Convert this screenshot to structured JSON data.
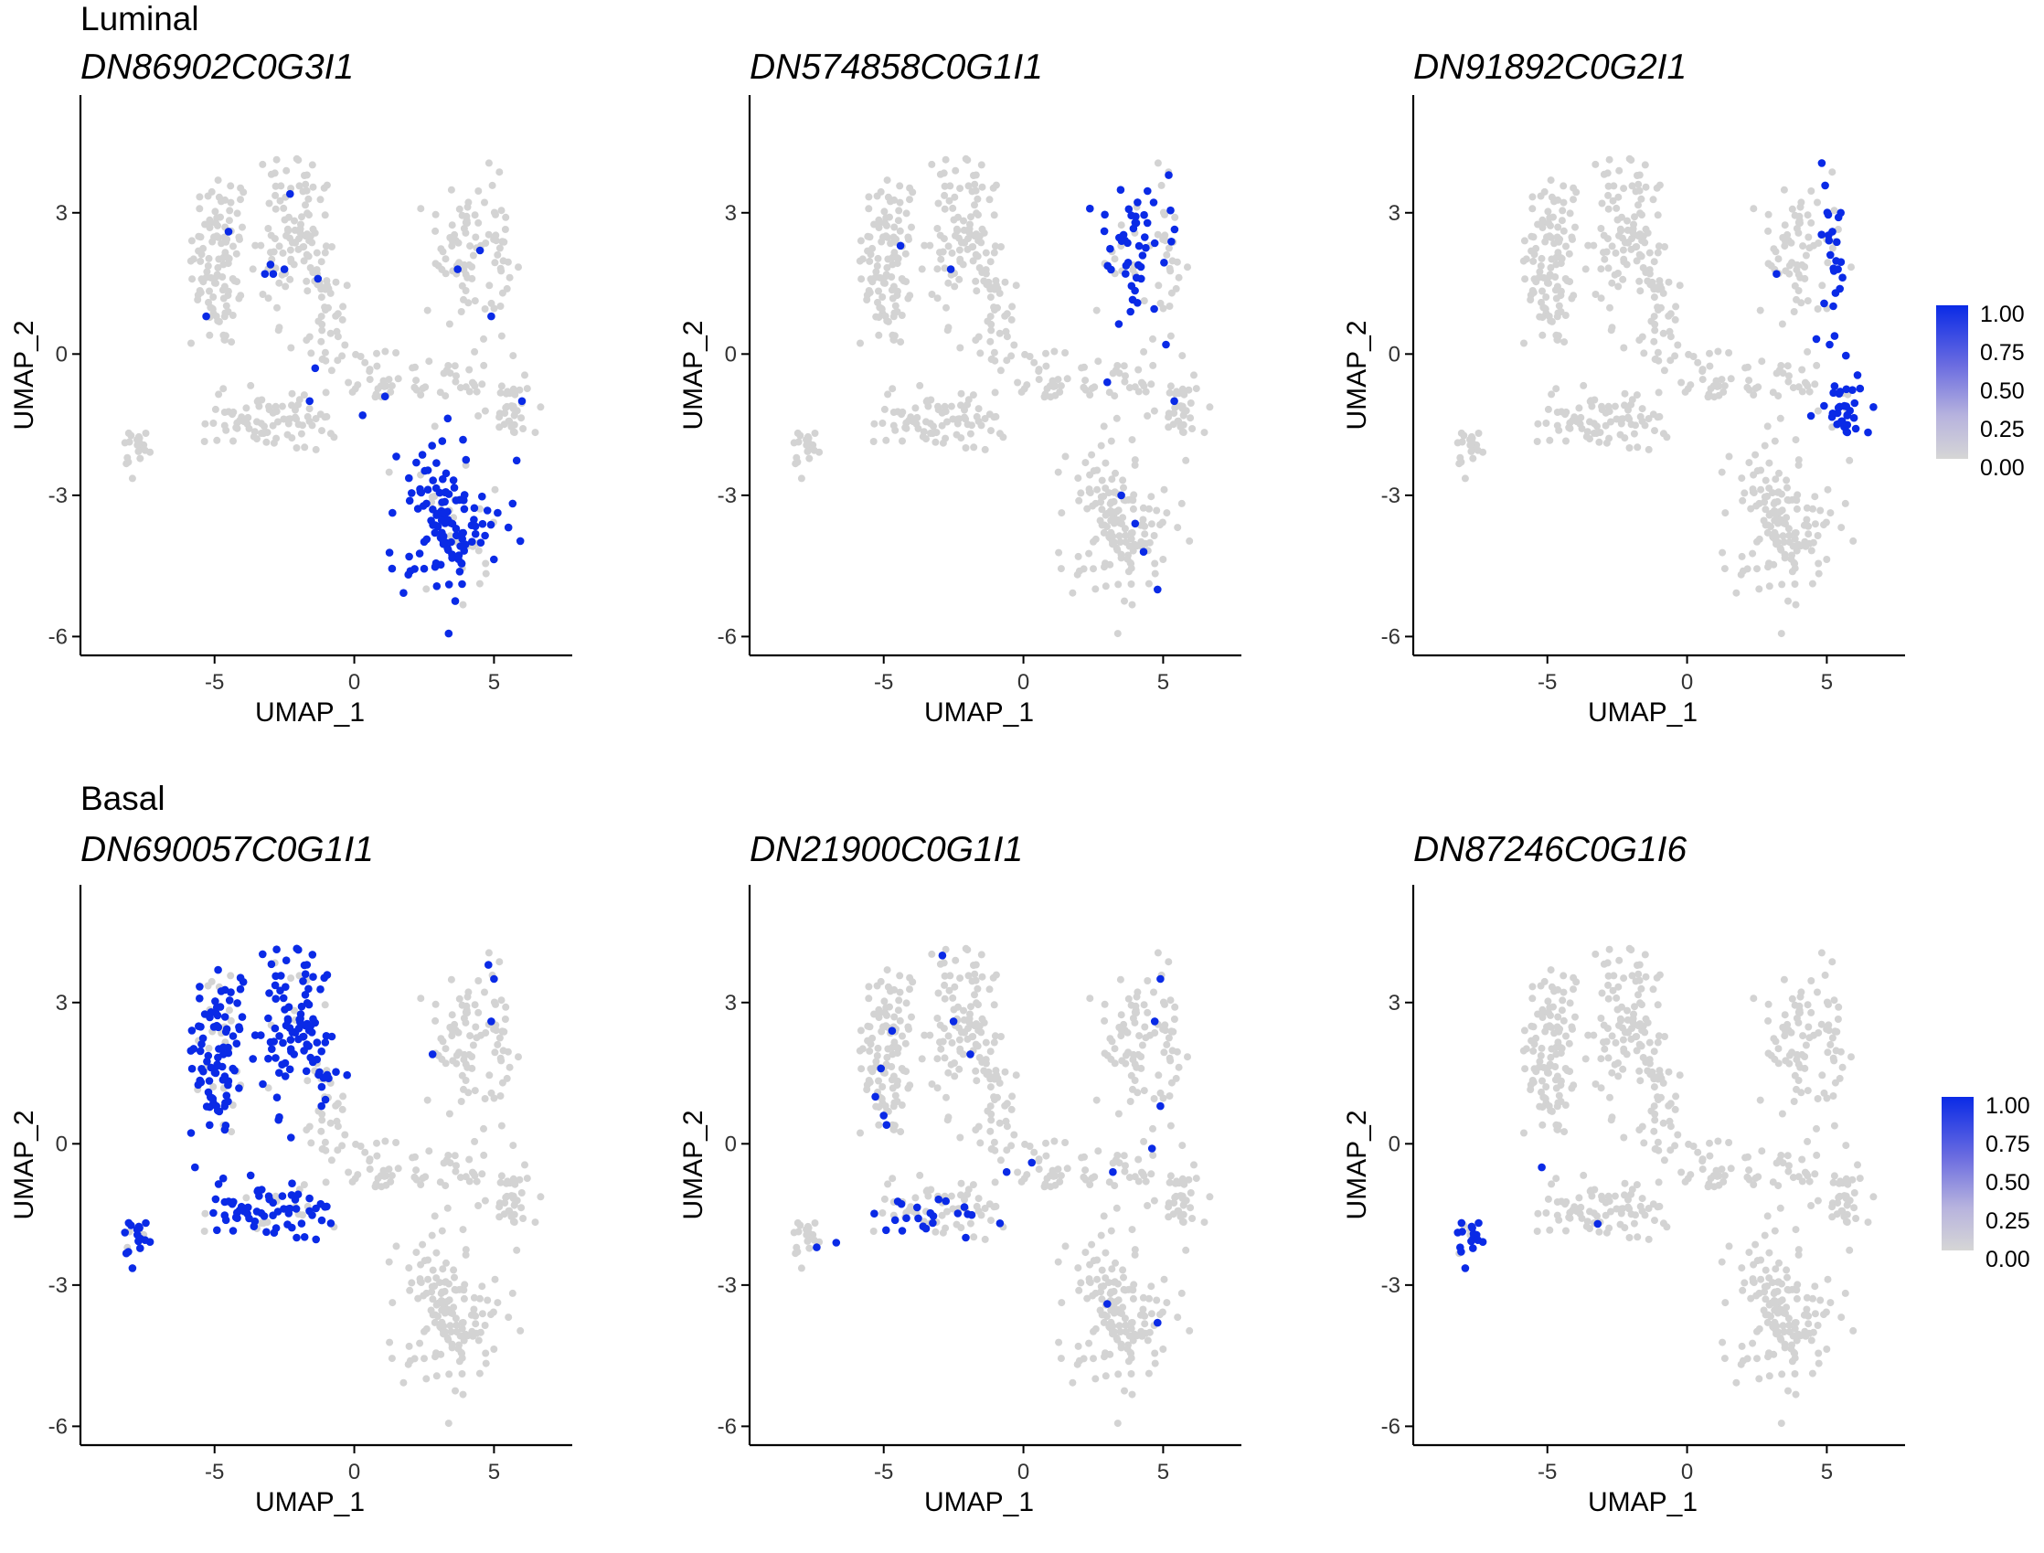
{
  "groups": [
    {
      "label": "Luminal"
    },
    {
      "label": "Basal"
    }
  ],
  "legends": [
    {
      "labels": [
        "1.00",
        "0.75",
        "0.50",
        "0.25",
        "0.00"
      ]
    },
    {
      "labels": [
        "1.00",
        "0.75",
        "0.50",
        "0.25",
        "0.00"
      ]
    }
  ],
  "colors": {
    "high": "#0a2ae6",
    "low": "#d3d3d3"
  },
  "chart_data": [
    {
      "type": "scatter",
      "title": "DN86902C0G3I1",
      "xlabel": "UMAP_1",
      "ylabel": "UMAP_2",
      "xticks": [
        "-5",
        "0",
        "5"
      ],
      "yticks": [
        "3",
        "0",
        "-3",
        "-6"
      ],
      "xlim": [
        -9.8,
        7.8
      ],
      "ylim": [
        -6.4,
        5.5
      ],
      "highlight": [
        "lumB"
      ],
      "scattered": [
        [
          -2.3,
          3.4
        ],
        [
          -3.0,
          1.9
        ],
        [
          -2.5,
          1.8
        ],
        [
          -3.2,
          1.7
        ],
        [
          -1.3,
          1.6
        ],
        [
          -4.5,
          2.6
        ],
        [
          4.5,
          2.2
        ],
        [
          3.7,
          1.8
        ],
        [
          4.9,
          0.8
        ],
        [
          -1.4,
          -0.3
        ],
        [
          -1.6,
          -1.0
        ],
        [
          1.1,
          -0.9
        ],
        [
          0.3,
          -1.3
        ],
        [
          6.0,
          -1.0
        ],
        [
          -5.3,
          0.8
        ],
        [
          -2.9,
          1.7
        ]
      ]
    },
    {
      "type": "scatter",
      "title": "DN574858C0G1I1",
      "xlabel": "UMAP_1",
      "ylabel": "UMAP_2",
      "xticks": [
        "-5",
        "0",
        "5"
      ],
      "yticks": [
        "3",
        "0",
        "-3",
        "-6"
      ],
      "xlim": [
        -9.8,
        7.8
      ],
      "ylim": [
        -6.4,
        5.5
      ],
      "highlight": [
        "lumC"
      ],
      "scattered": [
        [
          -4.4,
          2.3
        ],
        [
          -2.6,
          1.8
        ],
        [
          3.0,
          -0.6
        ],
        [
          5.4,
          -1.0
        ],
        [
          5.1,
          0.2
        ],
        [
          3.5,
          -3.0
        ],
        [
          4.3,
          -4.2
        ],
        [
          4.8,
          -5.0
        ],
        [
          5.2,
          3.8
        ],
        [
          4.0,
          -3.6
        ]
      ]
    },
    {
      "type": "scatter",
      "title": "DN91892C0G2I1",
      "xlabel": "UMAP_1",
      "ylabel": "UMAP_2",
      "xticks": [
        "-5",
        "0",
        "5"
      ],
      "yticks": [
        "3",
        "0",
        "-3",
        "-6"
      ],
      "xlim": [
        -9.8,
        7.8
      ],
      "ylim": [
        -6.4,
        5.5
      ],
      "highlight": [
        "lumR"
      ],
      "scattered": [
        [
          5.2,
          2.6
        ],
        [
          5.4,
          1.8
        ],
        [
          3.2,
          1.7
        ],
        [
          4.9,
          -1.1
        ],
        [
          5.5,
          3.0
        ],
        [
          5.1,
          0.2
        ]
      ]
    },
    {
      "type": "scatter",
      "title": "DN690057C0G1I1",
      "xlabel": "UMAP_1",
      "ylabel": "UMAP_2",
      "xticks": [
        "-5",
        "0",
        "5"
      ],
      "yticks": [
        "3",
        "0",
        "-3",
        "-6"
      ],
      "xlim": [
        -9.8,
        7.8
      ],
      "ylim": [
        -6.4,
        5.5
      ],
      "highlight": [
        "uL",
        "uM",
        "bas",
        "isl"
      ],
      "scattered": [
        [
          4.8,
          3.8
        ],
        [
          5.0,
          3.5
        ],
        [
          4.9,
          2.6
        ],
        [
          2.8,
          1.9
        ],
        [
          -5.7,
          -0.5
        ],
        [
          -1.1,
          1.4
        ]
      ]
    },
    {
      "type": "scatter",
      "title": "DN21900C0G1I1",
      "xlabel": "UMAP_1",
      "ylabel": "UMAP_2",
      "xticks": [
        "-5",
        "0",
        "5"
      ],
      "yticks": [
        "3",
        "0",
        "-3",
        "-6"
      ],
      "xlim": [
        -9.8,
        7.8
      ],
      "ylim": [
        -6.4,
        5.5
      ],
      "highlight": [
        "basU"
      ],
      "scattered": [
        [
          -2.9,
          4.0
        ],
        [
          -2.5,
          2.6
        ],
        [
          -1.9,
          1.9
        ],
        [
          -4.7,
          2.4
        ],
        [
          -5.1,
          1.6
        ],
        [
          -5.0,
          0.6
        ],
        [
          -5.3,
          1.0
        ],
        [
          -4.9,
          0.4
        ],
        [
          4.9,
          3.5
        ],
        [
          4.7,
          2.6
        ],
        [
          4.9,
          0.8
        ],
        [
          4.6,
          -0.1
        ],
        [
          3.2,
          -0.6
        ],
        [
          4.8,
          -3.8
        ],
        [
          3.0,
          -3.4
        ],
        [
          -6.7,
          -2.1
        ],
        [
          -7.4,
          -2.2
        ],
        [
          0.3,
          -0.4
        ],
        [
          -0.6,
          -0.6
        ]
      ]
    },
    {
      "type": "scatter",
      "title": "DN87246C0G1I6",
      "xlabel": "UMAP_1",
      "ylabel": "UMAP_2",
      "xticks": [
        "-5",
        "0",
        "5"
      ],
      "yticks": [
        "3",
        "0",
        "-3",
        "-6"
      ],
      "xlim": [
        -9.8,
        7.8
      ],
      "ylim": [
        -6.4,
        5.5
      ],
      "highlight": [
        "isl"
      ],
      "scattered": [
        [
          -5.2,
          -0.5
        ],
        [
          -3.2,
          -1.7
        ]
      ]
    }
  ]
}
